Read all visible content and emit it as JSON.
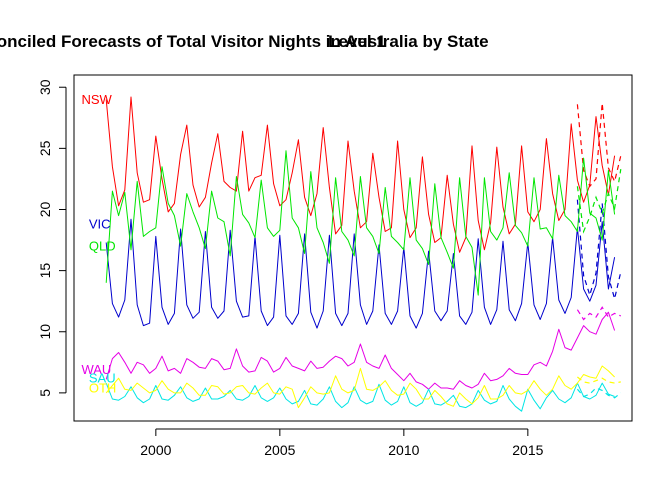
{
  "chart_data": {
    "type": "line",
    "title_main": "Optimally Reconciled Forecasts of Total Visitor Nights in Australia by State",
    "title_overlay": "Level 1",
    "xlabel": "",
    "ylabel": "",
    "xlim": [
      1996.7,
      2019.2
    ],
    "ylim": [
      2.7,
      31.0
    ],
    "x_ticks": [
      2000,
      2005,
      2010,
      2015
    ],
    "y_ticks": [
      5,
      10,
      15,
      20,
      25,
      30
    ],
    "grid": false,
    "legend": "none",
    "x_start": 1998.0,
    "x_step": 0.25,
    "forecast_start": 2017.0,
    "series": [
      {
        "name": "NSW",
        "color": "#ff0000",
        "label_pos": [
          1997.0,
          29.0
        ],
        "values": [
          29.0,
          23.5,
          20.3,
          21.6,
          29.2,
          23.0,
          20.6,
          20.8,
          26.0,
          22.5,
          19.8,
          20.5,
          24.5,
          26.9,
          22.0,
          20.2,
          21.0,
          23.8,
          26.2,
          22.3,
          21.8,
          21.5,
          26.4,
          21.5,
          22.6,
          22.8,
          26.9,
          22.1,
          20.3,
          20.8,
          23.0,
          25.7,
          21.0,
          19.5,
          21.3,
          26.7,
          21.8,
          18.0,
          18.7,
          25.6,
          21.5,
          18.5,
          19.0,
          24.6,
          21.0,
          18.2,
          18.5,
          25.6,
          20.0,
          17.7,
          18.5,
          24.3,
          19.6,
          17.3,
          17.7,
          22.8,
          18.8,
          16.5,
          17.7,
          25.2,
          19.1,
          16.7,
          18.9,
          25.1,
          20.2,
          18.0,
          18.8,
          25.2,
          19.8,
          19.0,
          20.0,
          25.8,
          21.3,
          19.1,
          20.0,
          27.0,
          22.4,
          20.6,
          22.0,
          27.6,
          23.6,
          21.2,
          24.4
        ],
        "forecast": [
          28.6,
          23.2,
          21.9,
          22.5,
          28.7,
          23.4,
          22.3,
          24.4
        ]
      },
      {
        "name": "VIC",
        "color": "#0000cd",
        "label_pos": [
          1997.3,
          18.8
        ],
        "values": [
          17.3,
          12.3,
          11.2,
          12.6,
          19.2,
          12.2,
          10.5,
          10.7,
          17.8,
          12.0,
          10.6,
          11.5,
          18.4,
          12.2,
          11.1,
          11.6,
          18.2,
          12.0,
          11.1,
          11.7,
          18.3,
          12.5,
          11.2,
          11.3,
          17.8,
          11.7,
          10.5,
          11.2,
          17.9,
          11.3,
          10.6,
          11.5,
          18.0,
          11.6,
          10.3,
          11.7,
          17.9,
          11.5,
          10.5,
          11.5,
          18.0,
          12.2,
          10.6,
          11.7,
          17.1,
          11.5,
          10.6,
          11.7,
          16.9,
          11.3,
          10.3,
          11.5,
          16.6,
          11.7,
          10.9,
          11.7,
          16.4,
          11.3,
          10.6,
          11.6,
          17.6,
          12.0,
          10.6,
          11.8,
          17.4,
          11.8,
          10.9,
          12.3,
          17.3,
          12.2,
          11.0,
          12.3,
          17.7,
          12.6,
          11.5,
          12.8,
          18.5,
          13.5,
          12.5,
          13.8,
          19.0,
          13.5,
          16.1
        ],
        "forecast": [
          20.8,
          14.6,
          13.0,
          14.8,
          20.5,
          14.5,
          12.7,
          14.9
        ]
      },
      {
        "name": "QLD",
        "color": "#00e600",
        "label_pos": [
          1997.3,
          17.0
        ],
        "values": [
          14.0,
          21.5,
          19.5,
          21.4,
          16.7,
          22.3,
          17.8,
          18.2,
          18.5,
          23.5,
          20.5,
          19.5,
          17.0,
          21.3,
          19.8,
          18.5,
          16.8,
          21.5,
          19.3,
          19.0,
          16.2,
          22.7,
          19.6,
          18.9,
          17.7,
          22.4,
          18.5,
          17.8,
          18.3,
          24.8,
          19.3,
          18.5,
          16.4,
          23.1,
          18.5,
          17.3,
          15.6,
          22.6,
          18.2,
          17.5,
          16.2,
          22.7,
          18.5,
          17.8,
          16.4,
          21.8,
          17.8,
          17.3,
          16.7,
          22.6,
          17.5,
          16.8,
          15.5,
          22.1,
          17.7,
          16.5,
          15.2,
          22.6,
          17.8,
          16.9,
          13.0,
          22.6,
          18.2,
          17.5,
          18.5,
          23.0,
          18.7,
          18.1,
          17.0,
          22.6,
          18.4,
          18.5,
          17.6,
          22.8,
          19.5,
          19.0,
          18.2,
          24.2,
          19.7,
          19.3,
          17.5,
          23.2,
          19.6
        ],
        "forecast": [
          21.9,
          18.2,
          19.4,
          21.0,
          19.7,
          21.3,
          20.1,
          23.3
        ]
      },
      {
        "name": "WAU",
        "color": "#e600e6",
        "label_pos": [
          1997.0,
          6.9
        ],
        "values": [
          6.1,
          7.8,
          8.3,
          7.5,
          6.6,
          7.5,
          7.3,
          6.6,
          7.0,
          8.0,
          6.8,
          7.0,
          6.6,
          7.8,
          7.5,
          7.1,
          7.0,
          7.8,
          7.6,
          6.9,
          7.0,
          8.6,
          7.2,
          6.7,
          6.8,
          7.9,
          7.6,
          6.7,
          7.0,
          7.9,
          7.2,
          7.0,
          6.8,
          7.6,
          7.0,
          7.1,
          7.6,
          8.0,
          7.8,
          7.2,
          7.5,
          9.0,
          7.5,
          7.2,
          7.0,
          8.1,
          7.0,
          6.5,
          6.0,
          6.6,
          5.9,
          5.7,
          5.3,
          5.8,
          5.4,
          5.4,
          5.3,
          6.0,
          5.6,
          5.4,
          5.7,
          6.6,
          6.0,
          6.1,
          6.4,
          7.0,
          6.6,
          6.5,
          6.5,
          7.3,
          7.5,
          7.2,
          8.4,
          10.2,
          8.7,
          8.5,
          9.5,
          10.5,
          10.0,
          9.8,
          11.0,
          11.6,
          10.1
        ],
        "forecast": [
          11.8,
          11.0,
          11.5,
          11.2,
          12.0,
          11.2,
          11.5,
          11.3
        ]
      },
      {
        "name": "SAU",
        "color": "#00e5e5",
        "label_pos": [
          1997.3,
          6.2
        ],
        "values": [
          5.8,
          4.5,
          4.4,
          4.7,
          5.5,
          4.6,
          4.2,
          4.5,
          5.6,
          4.5,
          4.4,
          4.8,
          5.5,
          4.6,
          4.3,
          4.5,
          5.4,
          4.5,
          4.5,
          4.7,
          5.2,
          4.5,
          4.4,
          4.7,
          5.6,
          4.6,
          4.3,
          4.6,
          5.4,
          4.5,
          4.1,
          4.3,
          5.2,
          4.1,
          4.0,
          4.5,
          5.5,
          4.3,
          3.8,
          4.2,
          5.5,
          4.4,
          4.1,
          4.3,
          5.7,
          4.4,
          4.0,
          4.3,
          5.5,
          4.2,
          3.9,
          4.2,
          5.3,
          4.1,
          4.0,
          4.3,
          4.8,
          3.9,
          3.8,
          4.1,
          5.2,
          4.4,
          4.1,
          4.3,
          5.6,
          4.5,
          3.9,
          3.5,
          5.3,
          4.4,
          3.7,
          4.6,
          5.2,
          4.5,
          4.2,
          4.6,
          5.8,
          4.7,
          4.5,
          4.8,
          5.8,
          4.9,
          4.7
        ],
        "forecast": [
          5.3,
          4.7,
          4.9,
          5.4,
          5.2,
          4.8,
          4.6,
          5.0
        ]
      },
      {
        "name": "OTH",
        "color": "#ffff00",
        "label_pos": [
          1997.3,
          5.4
        ],
        "values": [
          5.0,
          5.6,
          6.2,
          5.3,
          5.2,
          5.8,
          5.4,
          5.0,
          5.2,
          6.0,
          5.3,
          5.0,
          5.0,
          5.8,
          5.4,
          4.8,
          4.8,
          5.6,
          5.5,
          4.9,
          5.0,
          5.5,
          5.6,
          5.0,
          4.9,
          5.4,
          5.8,
          5.0,
          4.9,
          5.5,
          5.3,
          3.8,
          4.6,
          5.5,
          5.0,
          4.9,
          5.0,
          6.4,
          5.3,
          5.0,
          5.2,
          7.0,
          5.3,
          5.2,
          5.5,
          6.0,
          5.2,
          4.8,
          4.9,
          5.8,
          5.3,
          4.5,
          4.5,
          5.2,
          4.7,
          4.1,
          3.9,
          5.0,
          4.5,
          4.1,
          4.6,
          5.6,
          4.5,
          4.5,
          4.8,
          5.6,
          5.0,
          4.9,
          5.2,
          6.0,
          5.3,
          4.8,
          5.3,
          6.4,
          5.6,
          5.3,
          5.8,
          6.5,
          6.3,
          6.2,
          7.2,
          6.8,
          6.3
        ],
        "forecast": [
          6.3,
          5.9,
          5.8,
          6.0,
          6.2,
          5.9,
          5.8,
          5.9
        ]
      }
    ]
  }
}
